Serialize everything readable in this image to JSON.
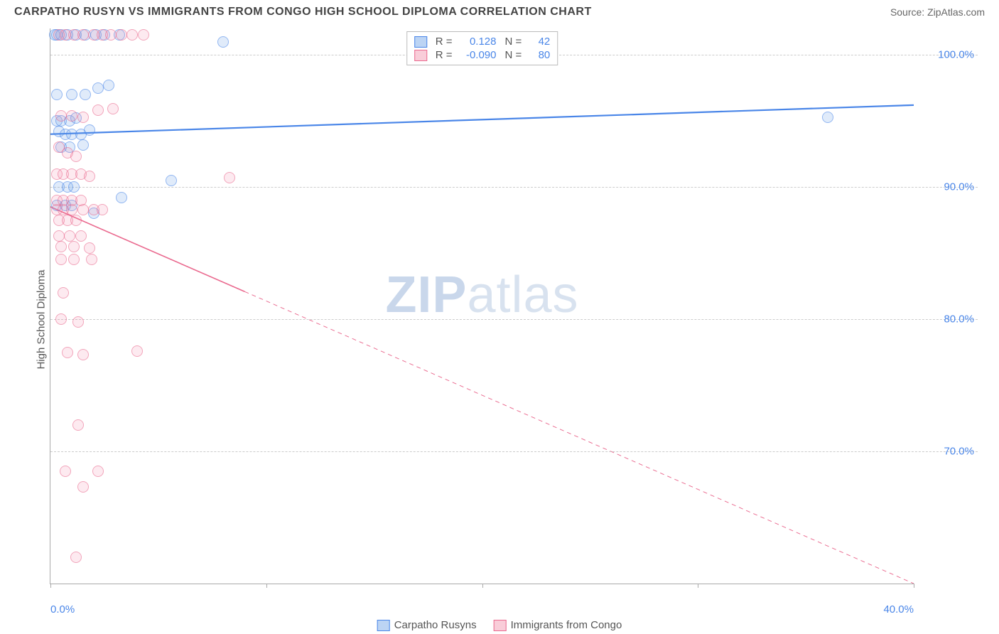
{
  "title": "CARPATHO RUSYN VS IMMIGRANTS FROM CONGO HIGH SCHOOL DIPLOMA CORRELATION CHART",
  "source_label": "Source:",
  "source_value": "ZipAtlas.com",
  "y_axis_label": "High School Diploma",
  "watermark_a": "ZIP",
  "watermark_b": "atlas",
  "chart": {
    "type": "scatter",
    "x_domain": [
      0,
      40
    ],
    "y_domain": [
      60,
      102
    ],
    "x_ticks": [
      {
        "v": 0,
        "label": "0.0%",
        "align": "left"
      },
      {
        "v": 10,
        "label": ""
      },
      {
        "v": 20,
        "label": ""
      },
      {
        "v": 30,
        "label": ""
      },
      {
        "v": 40,
        "label": "40.0%",
        "align": "right"
      }
    ],
    "y_gridlines": [
      {
        "v": 100,
        "label": "100.0%"
      },
      {
        "v": 90,
        "label": "90.0%"
      },
      {
        "v": 80,
        "label": "80.0%"
      },
      {
        "v": 70,
        "label": "70.0%"
      }
    ],
    "series": [
      {
        "name": "Carpatho Rusyns",
        "key": "blue",
        "color_fill": "rgba(106,160,230,0.35)",
        "color_stroke": "#4a86e8",
        "r_label": "R =",
        "r_value": "0.128",
        "n_label": "N =",
        "n_value": "42",
        "trend": {
          "x1": 0,
          "y1": 94.0,
          "x2": 40,
          "y2": 96.2,
          "solid_until_x": 40,
          "width": 2.2
        },
        "points": [
          [
            0.2,
            101.5
          ],
          [
            0.3,
            101.5
          ],
          [
            0.5,
            101.5
          ],
          [
            0.8,
            101.5
          ],
          [
            1.2,
            101.5
          ],
          [
            1.6,
            101.5
          ],
          [
            2.1,
            101.5
          ],
          [
            2.5,
            101.5
          ],
          [
            3.2,
            101.5
          ],
          [
            8.0,
            101.0
          ],
          [
            0.3,
            97.0
          ],
          [
            1.0,
            97.0
          ],
          [
            1.6,
            97.0
          ],
          [
            2.2,
            97.5
          ],
          [
            2.7,
            97.7
          ],
          [
            0.3,
            95.0
          ],
          [
            0.5,
            95.0
          ],
          [
            0.9,
            95.0
          ],
          [
            1.2,
            95.2
          ],
          [
            0.4,
            94.2
          ],
          [
            0.7,
            94.0
          ],
          [
            1.0,
            94.0
          ],
          [
            1.4,
            94.0
          ],
          [
            1.8,
            94.3
          ],
          [
            0.5,
            93.0
          ],
          [
            0.9,
            93.0
          ],
          [
            1.5,
            93.2
          ],
          [
            0.4,
            90.0
          ],
          [
            0.8,
            90.0
          ],
          [
            1.1,
            90.0
          ],
          [
            5.6,
            90.5
          ],
          [
            0.3,
            88.6
          ],
          [
            0.7,
            88.6
          ],
          [
            1.0,
            88.6
          ],
          [
            3.3,
            89.2
          ],
          [
            2.0,
            88.0
          ],
          [
            36.0,
            95.3
          ]
        ]
      },
      {
        "name": "Immigrants from Congo",
        "key": "pink",
        "color_fill": "rgba(240,130,160,0.28)",
        "color_stroke": "#ea6a8f",
        "r_label": "R =",
        "r_value": "-0.090",
        "n_label": "N =",
        "n_value": "80",
        "trend": {
          "x1": 0,
          "y1": 88.5,
          "x2": 40,
          "y2": 60.0,
          "solid_until_x": 9,
          "width": 1.6
        },
        "points": [
          [
            0.4,
            101.5
          ],
          [
            0.7,
            101.5
          ],
          [
            1.1,
            101.5
          ],
          [
            1.5,
            101.5
          ],
          [
            2.0,
            101.5
          ],
          [
            2.4,
            101.5
          ],
          [
            2.8,
            101.5
          ],
          [
            3.3,
            101.5
          ],
          [
            3.8,
            101.5
          ],
          [
            4.3,
            101.5
          ],
          [
            0.5,
            95.4
          ],
          [
            1.0,
            95.4
          ],
          [
            1.5,
            95.3
          ],
          [
            2.2,
            95.8
          ],
          [
            2.9,
            95.9
          ],
          [
            0.4,
            93.0
          ],
          [
            0.8,
            92.6
          ],
          [
            1.2,
            92.3
          ],
          [
            0.3,
            91.0
          ],
          [
            0.6,
            91.0
          ],
          [
            1.0,
            91.0
          ],
          [
            1.4,
            91.0
          ],
          [
            1.8,
            90.8
          ],
          [
            8.3,
            90.7
          ],
          [
            0.3,
            89.0
          ],
          [
            0.6,
            89.0
          ],
          [
            1.0,
            89.0
          ],
          [
            1.4,
            89.0
          ],
          [
            0.3,
            88.3
          ],
          [
            0.6,
            88.3
          ],
          [
            1.0,
            88.3
          ],
          [
            1.5,
            88.3
          ],
          [
            2.0,
            88.3
          ],
          [
            2.4,
            88.3
          ],
          [
            0.4,
            87.5
          ],
          [
            0.8,
            87.5
          ],
          [
            1.2,
            87.5
          ],
          [
            0.4,
            86.3
          ],
          [
            0.9,
            86.3
          ],
          [
            1.4,
            86.3
          ],
          [
            0.5,
            85.5
          ],
          [
            1.1,
            85.5
          ],
          [
            1.8,
            85.4
          ],
          [
            0.5,
            84.5
          ],
          [
            1.1,
            84.5
          ],
          [
            1.9,
            84.5
          ],
          [
            0.6,
            82.0
          ],
          [
            0.5,
            80.0
          ],
          [
            1.3,
            79.8
          ],
          [
            0.8,
            77.5
          ],
          [
            1.5,
            77.3
          ],
          [
            4.0,
            77.6
          ],
          [
            1.3,
            72.0
          ],
          [
            0.7,
            68.5
          ],
          [
            2.2,
            68.5
          ],
          [
            1.5,
            67.3
          ],
          [
            1.2,
            62.0
          ]
        ]
      }
    ]
  },
  "legend_bottom": [
    {
      "key": "blue",
      "label": "Carpatho Rusyns"
    },
    {
      "key": "pink",
      "label": "Immigrants from Congo"
    }
  ]
}
